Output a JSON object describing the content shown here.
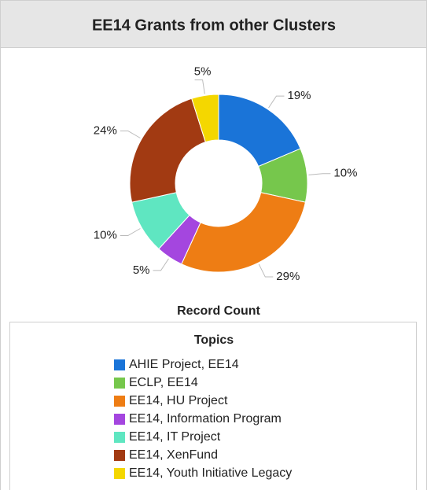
{
  "chart_data": {
    "type": "donut",
    "title": "EE14 Grants from other Clusters",
    "categories": [
      "AHIE Project, EE14",
      "ECLP, EE14",
      "EE14, HU Project",
      "EE14, Information Program",
      "EE14, IT Project",
      "EE14, XenFund",
      "EE14, Youth Initiative Legacy"
    ],
    "values": [
      19,
      10,
      29,
      5,
      10,
      24,
      5
    ],
    "value_labels": [
      "19%",
      "10%",
      "29%",
      "5%",
      "10%",
      "24%",
      "5%"
    ],
    "colors": [
      "#1a74d8",
      "#76c74c",
      "#ee7d14",
      "#a446df",
      "#5fe6c1",
      "#a23a12",
      "#f4d700"
    ],
    "axis_label": "Record Count",
    "legend_title": "Topics",
    "legend": "bottom"
  }
}
